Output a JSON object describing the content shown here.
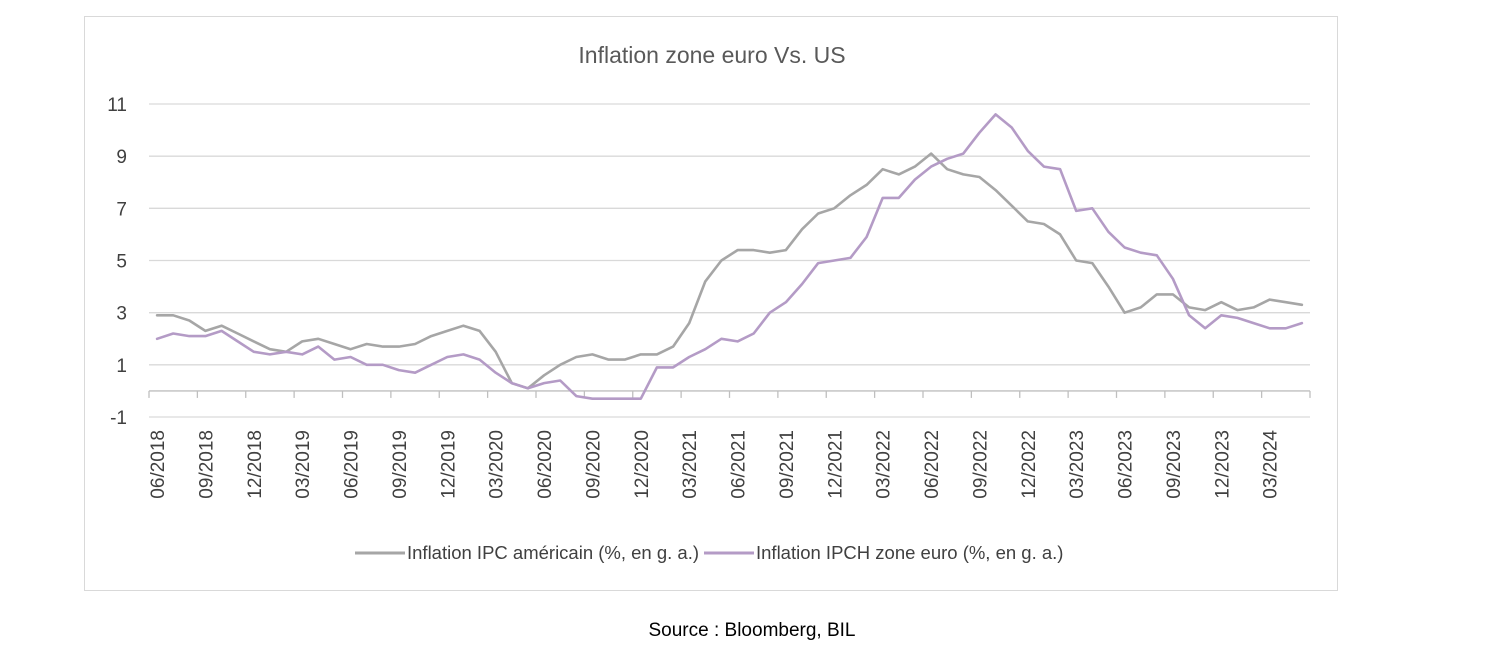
{
  "colors": {
    "us": "#a6a6a6",
    "eu": "#b49bc6",
    "grid": "#d9d9d9",
    "axis": "#bfbfbf"
  },
  "source": "Source : Bloomberg, BIL",
  "chart_data": {
    "type": "line",
    "title": "Inflation zone euro Vs. US",
    "xlabel": "",
    "ylabel": "",
    "ylim": [
      -1,
      11
    ],
    "yticks": [
      "-1",
      "1",
      "3",
      "5",
      "7",
      "9",
      "11"
    ],
    "xtick_labels": [
      "06/2018",
      "09/2018",
      "12/2018",
      "03/2019",
      "06/2019",
      "09/2019",
      "12/2019",
      "03/2020",
      "06/2020",
      "09/2020",
      "12/2020",
      "03/2021",
      "06/2021",
      "09/2021",
      "12/2021",
      "03/2022",
      "06/2022",
      "09/2022",
      "12/2022",
      "03/2023",
      "06/2023",
      "09/2023",
      "12/2023",
      "03/2024"
    ],
    "x_start": "06/2018",
    "x_end": "05/2024",
    "grid": true,
    "legend_position": "bottom",
    "series": [
      {
        "name": "Inflation IPC américain (%, en g. a.)",
        "values": [
          2.9,
          2.9,
          2.7,
          2.3,
          2.5,
          2.2,
          1.9,
          1.6,
          1.5,
          1.9,
          2.0,
          1.8,
          1.6,
          1.8,
          1.7,
          1.7,
          1.8,
          2.1,
          2.3,
          2.5,
          2.3,
          1.5,
          0.3,
          0.1,
          0.6,
          1.0,
          1.3,
          1.4,
          1.2,
          1.2,
          1.4,
          1.4,
          1.7,
          2.6,
          4.2,
          5.0,
          5.4,
          5.4,
          5.3,
          5.4,
          6.2,
          6.8,
          7.0,
          7.5,
          7.9,
          8.5,
          8.3,
          8.6,
          9.1,
          8.5,
          8.3,
          8.2,
          7.7,
          7.1,
          6.5,
          6.4,
          6.0,
          5.0,
          4.9,
          4.0,
          3.0,
          3.2,
          3.7,
          3.7,
          3.2,
          3.1,
          3.4,
          3.1,
          3.2,
          3.5,
          3.4,
          3.3
        ]
      },
      {
        "name": "Inflation IPCH zone euro (%, en g. a.)",
        "values": [
          2.0,
          2.2,
          2.1,
          2.1,
          2.3,
          1.9,
          1.5,
          1.4,
          1.5,
          1.4,
          1.7,
          1.2,
          1.3,
          1.0,
          1.0,
          0.8,
          0.7,
          1.0,
          1.3,
          1.4,
          1.2,
          0.7,
          0.3,
          0.1,
          0.3,
          0.4,
          -0.2,
          -0.3,
          -0.3,
          -0.3,
          -0.3,
          0.9,
          0.9,
          1.3,
          1.6,
          2.0,
          1.9,
          2.2,
          3.0,
          3.4,
          4.1,
          4.9,
          5.0,
          5.1,
          5.9,
          7.4,
          7.4,
          8.1,
          8.6,
          8.9,
          9.1,
          9.9,
          10.6,
          10.1,
          9.2,
          8.6,
          8.5,
          6.9,
          7.0,
          6.1,
          5.5,
          5.3,
          5.2,
          4.3,
          2.9,
          2.4,
          2.9,
          2.8,
          2.6,
          2.4,
          2.4,
          2.6
        ]
      }
    ]
  }
}
